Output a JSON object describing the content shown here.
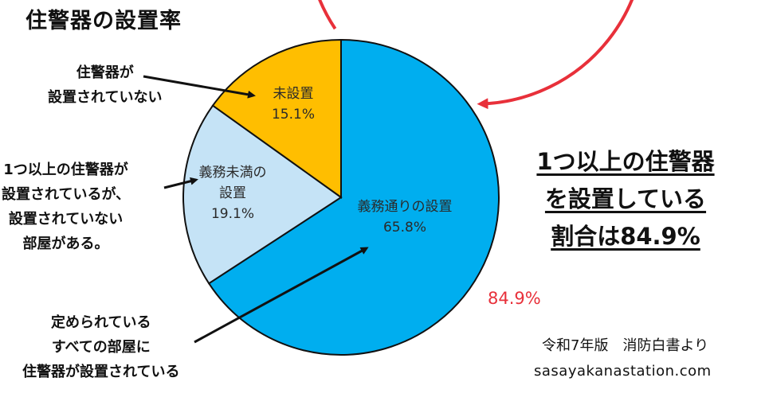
{
  "title": "住警器の設置率",
  "chart_data": {
    "type": "pie",
    "slices": [
      {
        "label": "義務通りの設置",
        "value": 65.8,
        "value_label": "65.8%",
        "color": "#00aeef"
      },
      {
        "label": "義務未満の設置",
        "label_lines": [
          "義務未満の",
          "設置"
        ],
        "value": 19.1,
        "value_label": "19.1%",
        "color": "#c5e3f6"
      },
      {
        "label": "未設置",
        "value": 15.1,
        "value_label": "15.1%",
        "color": "#ffbe00"
      }
    ],
    "arc_annotation": {
      "text": "84.9%",
      "color": "#e8303a"
    }
  },
  "annotations": {
    "not_installed": [
      "住警器が",
      "設置されていない"
    ],
    "partial": [
      "1つ以上の住警器が",
      "設置されているが、",
      "設置されていない",
      "部屋がある。"
    ],
    "full": [
      "定められている",
      "すべての部屋に",
      "住警器が設置されている"
    ]
  },
  "summary": [
    "1つ以上の住警器",
    "を設置している",
    "割合は84.9%"
  ],
  "source": "令和7年版　消防白書より",
  "site": "sasayakanastation.com"
}
